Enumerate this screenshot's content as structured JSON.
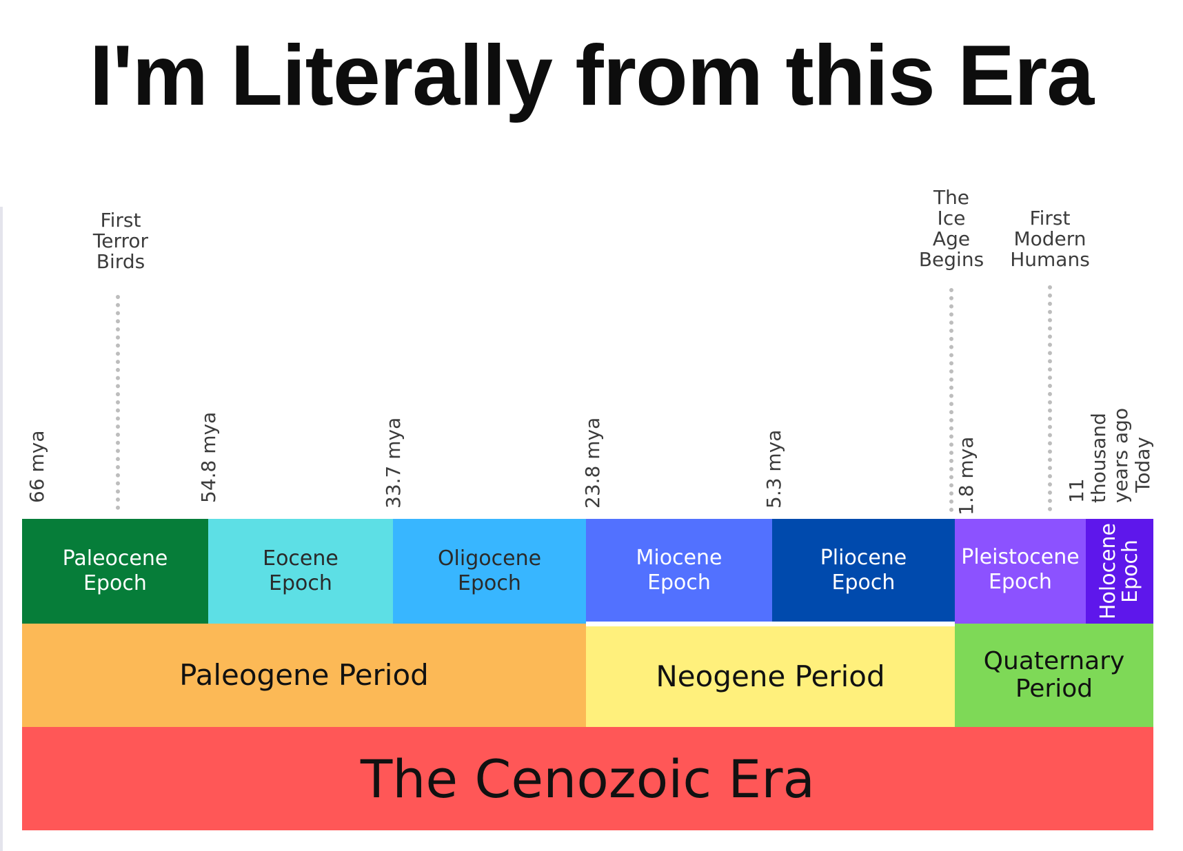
{
  "title": "I'm Literally from this Era",
  "events": [
    {
      "id": "first-terror-birds",
      "label": "First\nTerror\nBirds"
    },
    {
      "id": "ice-age",
      "label": "The\nIce\nAge\nBegins"
    },
    {
      "id": "first-modern-humans",
      "label": "First\nModern\nHumans"
    }
  ],
  "ticks": [
    {
      "label": "66 mya"
    },
    {
      "label": "54.8 mya"
    },
    {
      "label": "33.7 mya"
    },
    {
      "label": "23.8 mya"
    },
    {
      "label": "5.3 mya"
    },
    {
      "label": "1.8 mya"
    },
    {
      "label": "11 thousand\nyears ago"
    },
    {
      "label": "Today"
    }
  ],
  "epochs": [
    {
      "label": "Paleocene\nEpoch",
      "color": "#067d39"
    },
    {
      "label": "Eocene\nEpoch",
      "color": "#5ddfe5"
    },
    {
      "label": "Oligocene\nEpoch",
      "color": "#38b6ff"
    },
    {
      "label": "Miocene\nEpoch",
      "color": "#5271ff"
    },
    {
      "label": "Pliocene\nEpoch",
      "color": "#004aad"
    },
    {
      "label": "Pleistocene\nEpoch",
      "color": "#8c52ff"
    },
    {
      "label": "Holocene\nEpoch",
      "color": "#5e17eb"
    }
  ],
  "periods": [
    {
      "label": "Paleogene Period",
      "color": "#fcb956"
    },
    {
      "label": "Neogene Period",
      "color": "#fff07c"
    },
    {
      "label": "Quaternary\nPeriod",
      "color": "#7ed957"
    }
  ],
  "era": {
    "label": "The Cenozoic Era",
    "color": "#ff5757"
  }
}
